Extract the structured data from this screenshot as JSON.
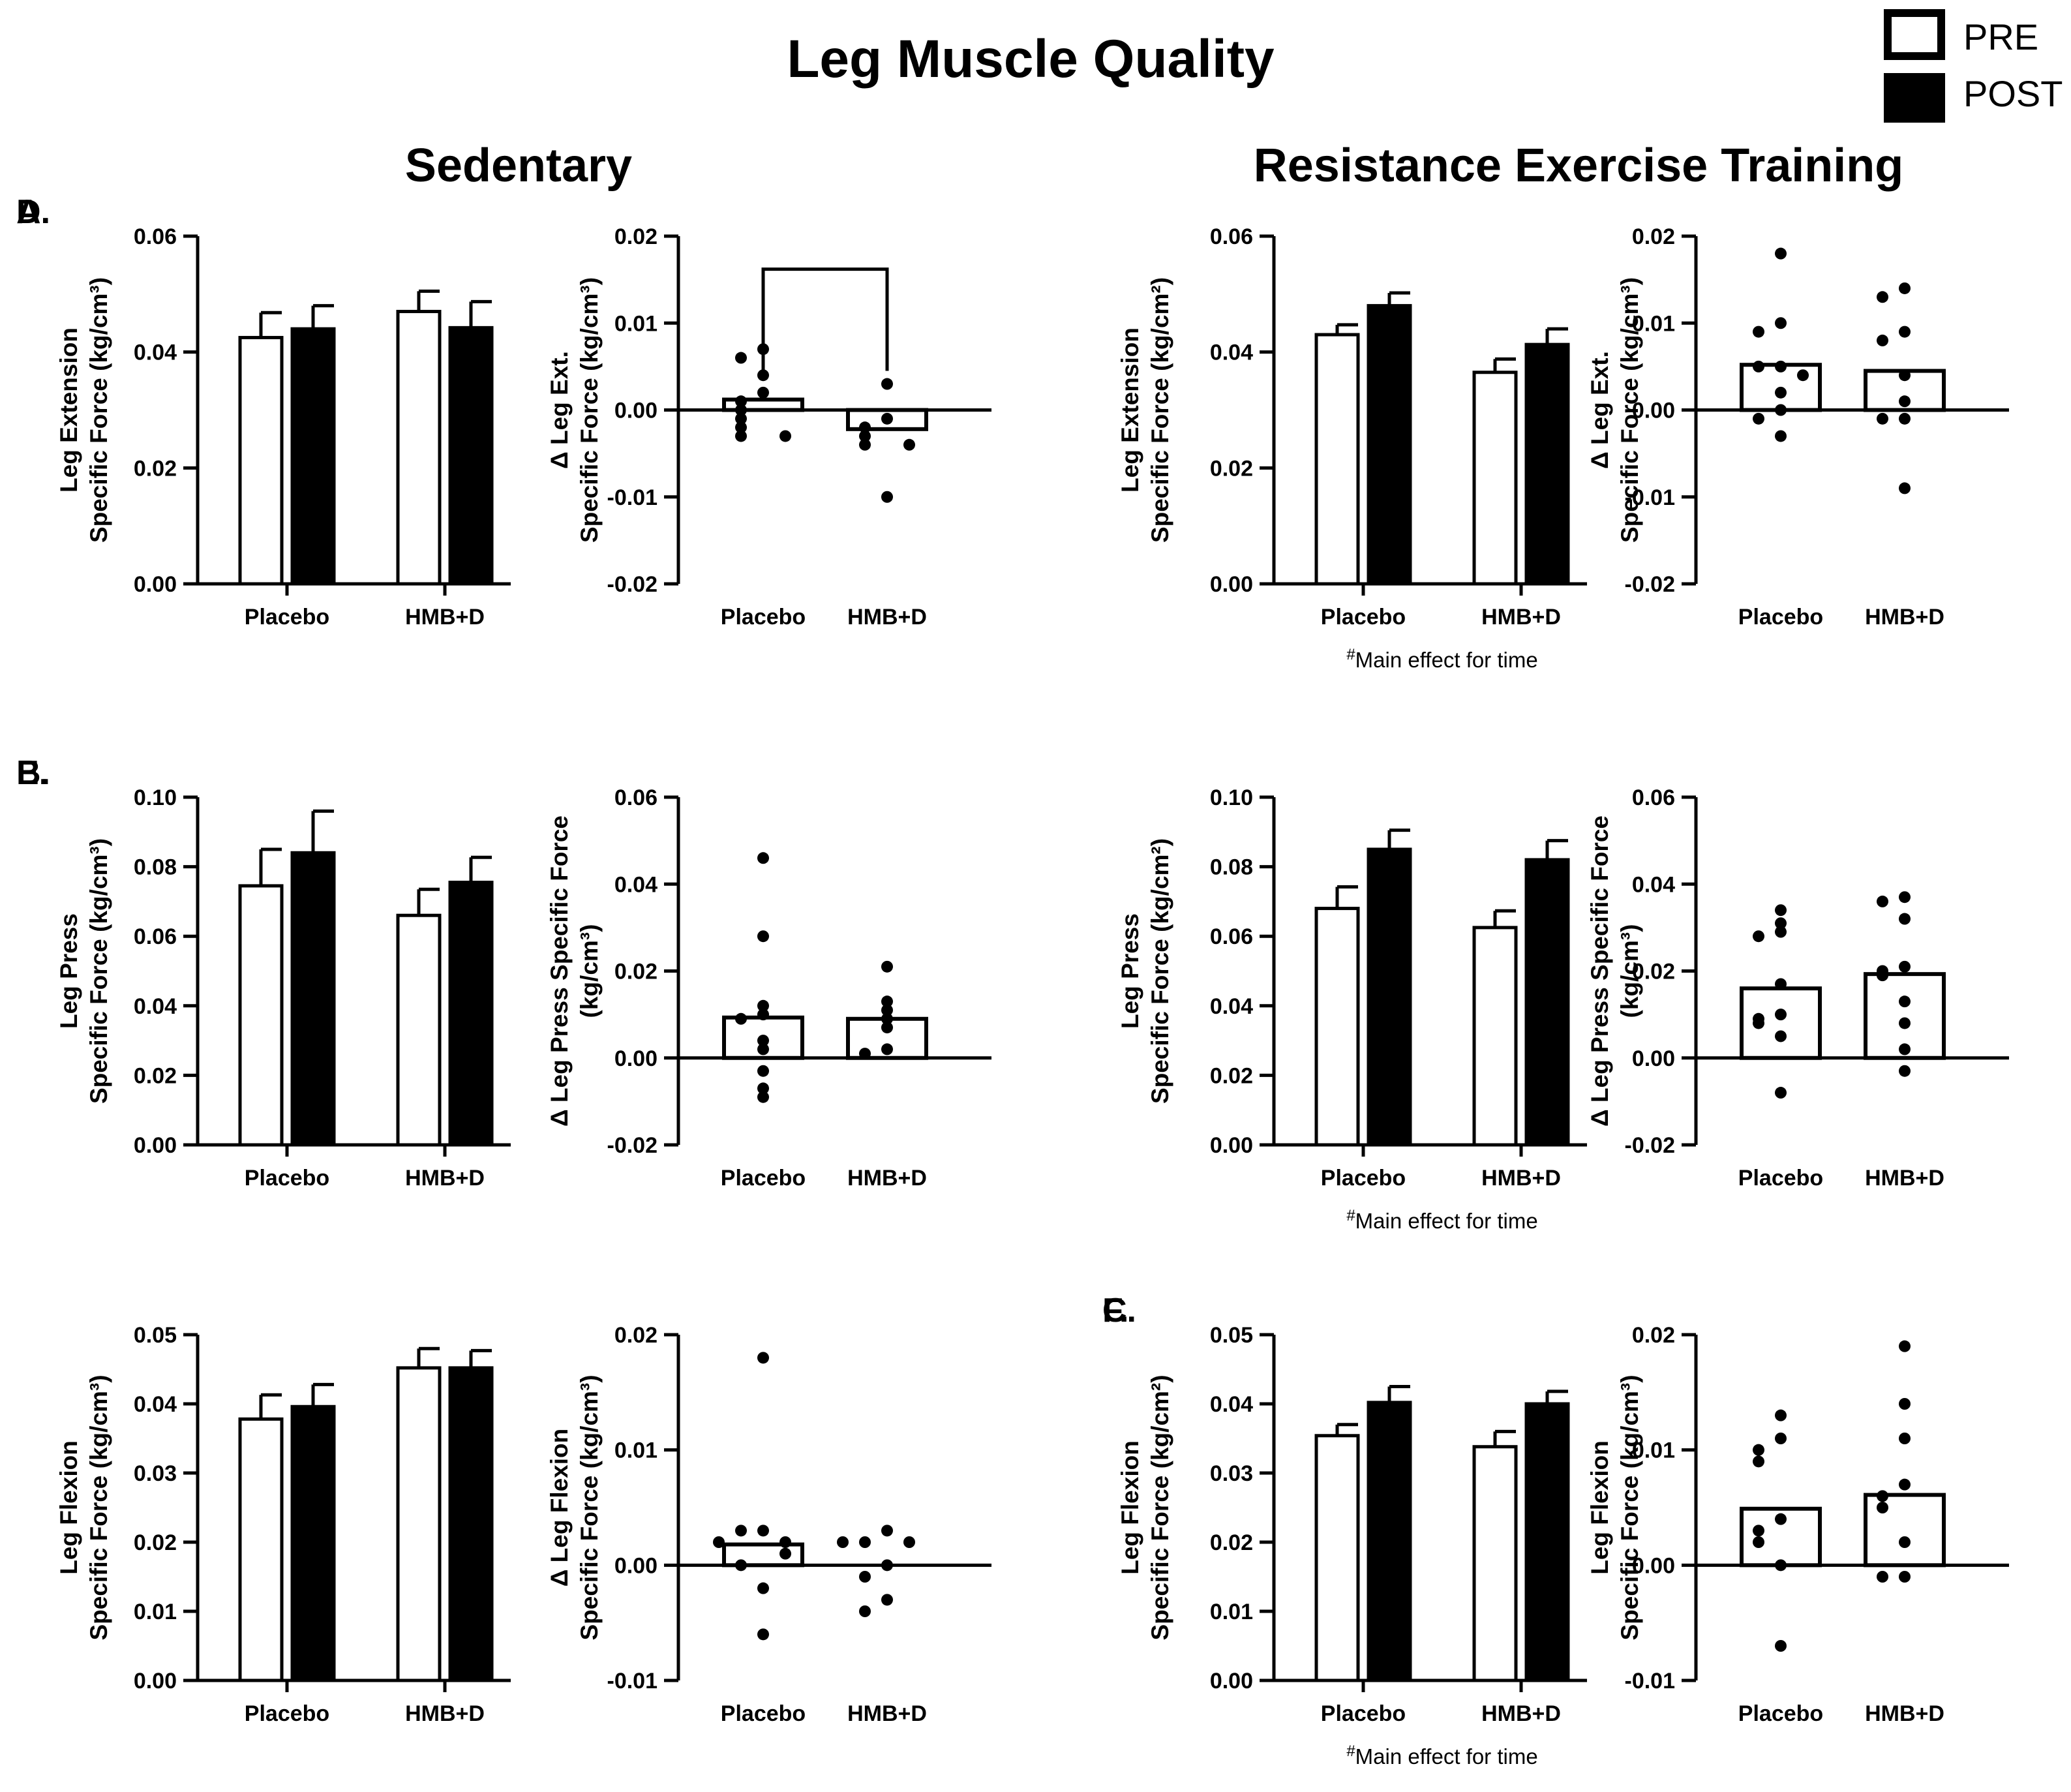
{
  "figure": {
    "title": "Leg Muscle Quality",
    "columns": [
      "Sedentary",
      "Resistance Exercise Training"
    ],
    "legend": [
      {
        "label": "PRE",
        "fill": "#ffffff"
      },
      {
        "label": "POST",
        "fill": "#000000"
      }
    ],
    "colors": {
      "pre": "#ffffff",
      "post": "#000000",
      "axis": "#000000"
    }
  },
  "chart_data": [
    {
      "id": "A-left",
      "panel": "A.",
      "type": "bar",
      "ylabel": [
        "Leg Extension",
        "Specific Force (kg/cm³)"
      ],
      "categories": [
        "Placebo",
        "HMB+D"
      ],
      "ylim": [
        0,
        0.06
      ],
      "yticks": [
        {
          "v": 0,
          "t": "0.00"
        },
        {
          "v": 0.02,
          "t": "0.02"
        },
        {
          "v": 0.04,
          "t": "0.04"
        },
        {
          "v": 0.06,
          "t": "0.06"
        }
      ],
      "series": [
        {
          "name": "PRE",
          "values": [
            0.0425,
            0.047
          ],
          "errors": [
            0.0043,
            0.0035
          ]
        },
        {
          "name": "POST",
          "values": [
            0.044,
            0.0442
          ],
          "errors": [
            0.004,
            0.0045
          ]
        }
      ],
      "note": ""
    },
    {
      "id": "A-right",
      "panel": "",
      "type": "scatter",
      "ylabel": [
        "Δ Leg Ext.",
        "Specific Force (kg/cm³)"
      ],
      "categories": [
        "Placebo",
        "HMB+D"
      ],
      "ylim": [
        -0.02,
        0.02
      ],
      "yticks": [
        {
          "v": -0.02,
          "t": "-0.02"
        },
        {
          "v": -0.01,
          "t": "-0.01"
        },
        {
          "v": 0,
          "t": "0.00"
        },
        {
          "v": 0.01,
          "t": "0.01"
        },
        {
          "v": 0.02,
          "t": "0.02"
        }
      ],
      "means": [
        0.0012,
        -0.0022
      ],
      "points": [
        [
          0.007,
          0.006,
          0.004,
          0.002,
          0.001,
          0.0,
          -0.001,
          -0.002,
          -0.003,
          -0.003
        ],
        [
          0.003,
          -0.001,
          -0.002,
          -0.003,
          -0.004,
          -0.004,
          -0.01
        ]
      ],
      "bracket": true,
      "note": ""
    },
    {
      "id": "B-left",
      "panel": "B.",
      "type": "bar",
      "ylabel": [
        "Leg Press",
        "Specific Force (kg/cm³)"
      ],
      "categories": [
        "Placebo",
        "HMB+D"
      ],
      "ylim": [
        0,
        0.1
      ],
      "yticks": [
        {
          "v": 0,
          "t": "0.00"
        },
        {
          "v": 0.02,
          "t": "0.02"
        },
        {
          "v": 0.04,
          "t": "0.04"
        },
        {
          "v": 0.06,
          "t": "0.06"
        },
        {
          "v": 0.08,
          "t": "0.08"
        },
        {
          "v": 0.1,
          "t": "0.10"
        }
      ],
      "series": [
        {
          "name": "PRE",
          "values": [
            0.0745,
            0.066
          ],
          "errors": [
            0.0105,
            0.0075
          ]
        },
        {
          "name": "POST",
          "values": [
            0.084,
            0.0755
          ],
          "errors": [
            0.012,
            0.0072
          ]
        }
      ],
      "note": ""
    },
    {
      "id": "B-right",
      "panel": "",
      "type": "scatter",
      "ylabel": [
        "Δ Leg Press Specific Force",
        "(kg/cm³)"
      ],
      "categories": [
        "Placebo",
        "HMB+D"
      ],
      "ylim": [
        -0.02,
        0.06
      ],
      "yticks": [
        {
          "v": -0.02,
          "t": "-0.02"
        },
        {
          "v": 0,
          "t": "0.00"
        },
        {
          "v": 0.02,
          "t": "0.02"
        },
        {
          "v": 0.04,
          "t": "0.04"
        },
        {
          "v": 0.06,
          "t": "0.06"
        }
      ],
      "means": [
        0.0093,
        0.009
      ],
      "points": [
        [
          0.046,
          0.028,
          0.012,
          0.01,
          0.009,
          0.004,
          0.002,
          -0.003,
          -0.007,
          -0.009
        ],
        [
          0.021,
          0.013,
          0.011,
          0.009,
          0.007,
          0.002,
          0.001
        ]
      ],
      "bracket": false,
      "note": ""
    },
    {
      "id": "C-left",
      "panel": "C.",
      "type": "bar",
      "ylabel": [
        "Leg Flexion",
        "Specific Force (kg/cm³)"
      ],
      "categories": [
        "Placebo",
        "HMB+D"
      ],
      "ylim": [
        0,
        0.05
      ],
      "yticks": [
        {
          "v": 0,
          "t": "0.00"
        },
        {
          "v": 0.01,
          "t": "0.01"
        },
        {
          "v": 0.02,
          "t": "0.02"
        },
        {
          "v": 0.03,
          "t": "0.03"
        },
        {
          "v": 0.04,
          "t": "0.04"
        },
        {
          "v": 0.05,
          "t": "0.05"
        }
      ],
      "series": [
        {
          "name": "PRE",
          "values": [
            0.0378,
            0.0452
          ],
          "errors": [
            0.0035,
            0.0028
          ]
        },
        {
          "name": "POST",
          "values": [
            0.0396,
            0.0452
          ],
          "errors": [
            0.0032,
            0.0025
          ]
        }
      ],
      "note": ""
    },
    {
      "id": "C-right",
      "panel": "",
      "type": "scatter",
      "ylabel": [
        "Δ Leg Flexion",
        "Specific Force (kg/cm³)"
      ],
      "categories": [
        "Placebo",
        "HMB+D"
      ],
      "ylim": [
        -0.01,
        0.02
      ],
      "yticks": [
        {
          "v": -0.01,
          "t": "-0.01"
        },
        {
          "v": 0,
          "t": "0.00"
        },
        {
          "v": 0.01,
          "t": "0.01"
        },
        {
          "v": 0.02,
          "t": "0.02"
        }
      ],
      "means": [
        0.0018,
        0.0
      ],
      "points": [
        [
          0.018,
          0.003,
          0.003,
          0.002,
          0.002,
          0.001,
          0.0,
          -0.002,
          -0.006
        ],
        [
          0.003,
          0.002,
          0.002,
          0.002,
          0.0,
          -0.001,
          -0.003,
          -0.004
        ]
      ],
      "bracket": false,
      "note": ""
    },
    {
      "id": "D-left",
      "panel": "D.",
      "type": "bar",
      "ylabel": [
        "Leg Extension",
        "Specific Force (kg/cm²)"
      ],
      "categories": [
        "Placebo",
        "HMB+D"
      ],
      "ylim": [
        0,
        0.06
      ],
      "yticks": [
        {
          "v": 0,
          "t": "0.00"
        },
        {
          "v": 0.02,
          "t": "0.02"
        },
        {
          "v": 0.04,
          "t": "0.04"
        },
        {
          "v": 0.06,
          "t": "0.06"
        }
      ],
      "series": [
        {
          "name": "PRE",
          "values": [
            0.043,
            0.0365
          ],
          "errors": [
            0.0017,
            0.0023
          ]
        },
        {
          "name": "POST",
          "values": [
            0.048,
            0.0413
          ],
          "errors": [
            0.0022,
            0.0027
          ]
        }
      ],
      "note": "Main effect for time"
    },
    {
      "id": "D-right",
      "panel": "",
      "type": "scatter",
      "ylabel": [
        "Δ Leg Ext.",
        "Specific Force (kg/cm³)"
      ],
      "categories": [
        "Placebo",
        "HMB+D"
      ],
      "ylim": [
        -0.02,
        0.02
      ],
      "yticks": [
        {
          "v": -0.02,
          "t": "-0.02"
        },
        {
          "v": -0.01,
          "t": "-0.01"
        },
        {
          "v": 0,
          "t": "0.00"
        },
        {
          "v": 0.01,
          "t": "0.01"
        },
        {
          "v": 0.02,
          "t": "0.02"
        }
      ],
      "means": [
        0.0052,
        0.0045
      ],
      "points": [
        [
          0.018,
          0.01,
          0.009,
          0.005,
          0.005,
          0.004,
          0.002,
          0.0,
          -0.001,
          -0.003
        ],
        [
          0.014,
          0.013,
          0.009,
          0.008,
          0.004,
          0.001,
          -0.001,
          -0.001,
          -0.009
        ]
      ],
      "bracket": false,
      "note": ""
    },
    {
      "id": "E-left",
      "panel": "E.",
      "type": "bar",
      "ylabel": [
        "Leg Press",
        "Specific Force (kg/cm²)"
      ],
      "categories": [
        "Placebo",
        "HMB+D"
      ],
      "ylim": [
        0,
        0.1
      ],
      "yticks": [
        {
          "v": 0,
          "t": "0.00"
        },
        {
          "v": 0.02,
          "t": "0.02"
        },
        {
          "v": 0.04,
          "t": "0.04"
        },
        {
          "v": 0.06,
          "t": "0.06"
        },
        {
          "v": 0.08,
          "t": "0.08"
        },
        {
          "v": 0.1,
          "t": "0.10"
        }
      ],
      "series": [
        {
          "name": "PRE",
          "values": [
            0.068,
            0.0625
          ],
          "errors": [
            0.0062,
            0.0048
          ]
        },
        {
          "name": "POST",
          "values": [
            0.085,
            0.082
          ],
          "errors": [
            0.0055,
            0.0055
          ]
        }
      ],
      "note": "Main effect for time"
    },
    {
      "id": "E-right",
      "panel": "",
      "type": "scatter",
      "ylabel": [
        "Δ Leg Press Specific Force",
        "(kg/cm³)"
      ],
      "categories": [
        "Placebo",
        "HMB+D"
      ],
      "ylim": [
        -0.02,
        0.06
      ],
      "yticks": [
        {
          "v": -0.02,
          "t": "-0.02"
        },
        {
          "v": 0,
          "t": "0.00"
        },
        {
          "v": 0.02,
          "t": "0.02"
        },
        {
          "v": 0.04,
          "t": "0.04"
        },
        {
          "v": 0.06,
          "t": "0.06"
        }
      ],
      "means": [
        0.016,
        0.0193
      ],
      "points": [
        [
          0.034,
          0.031,
          0.029,
          0.028,
          0.017,
          0.01,
          0.009,
          0.008,
          0.005,
          -0.008
        ],
        [
          0.037,
          0.036,
          0.032,
          0.021,
          0.02,
          0.019,
          0.013,
          0.008,
          0.002,
          -0.003
        ]
      ],
      "bracket": false,
      "note": ""
    },
    {
      "id": "F-left",
      "panel": "F.",
      "type": "bar",
      "ylabel": [
        "Leg Flexion",
        "Specific Force (kg/cm²)"
      ],
      "categories": [
        "Placebo",
        "HMB+D"
      ],
      "ylim": [
        0,
        0.05
      ],
      "yticks": [
        {
          "v": 0,
          "t": "0.00"
        },
        {
          "v": 0.01,
          "t": "0.01"
        },
        {
          "v": 0.02,
          "t": "0.02"
        },
        {
          "v": 0.03,
          "t": "0.03"
        },
        {
          "v": 0.04,
          "t": "0.04"
        },
        {
          "v": 0.05,
          "t": "0.05"
        }
      ],
      "series": [
        {
          "name": "PRE",
          "values": [
            0.0354,
            0.0338
          ],
          "errors": [
            0.0016,
            0.0022
          ]
        },
        {
          "name": "POST",
          "values": [
            0.0402,
            0.04
          ],
          "errors": [
            0.0023,
            0.0018
          ]
        }
      ],
      "note": "Main effect for time"
    },
    {
      "id": "F-right",
      "panel": "",
      "type": "scatter",
      "ylabel": [
        "Leg Flexion",
        "Specific Force (kg/cm³)"
      ],
      "categories": [
        "Placebo",
        "HMB+D"
      ],
      "ylim": [
        -0.01,
        0.02
      ],
      "yticks": [
        {
          "v": -0.01,
          "t": "-0.01"
        },
        {
          "v": 0,
          "t": "0.00"
        },
        {
          "v": 0.01,
          "t": "0.01"
        },
        {
          "v": 0.02,
          "t": "0.02"
        }
      ],
      "means": [
        0.0049,
        0.0061
      ],
      "points": [
        [
          0.013,
          0.011,
          0.01,
          0.009,
          0.004,
          0.003,
          0.002,
          0.0,
          -0.007
        ],
        [
          0.019,
          0.014,
          0.011,
          0.007,
          0.006,
          0.005,
          0.002,
          -0.001,
          -0.001
        ]
      ],
      "bracket": false,
      "note": ""
    }
  ]
}
